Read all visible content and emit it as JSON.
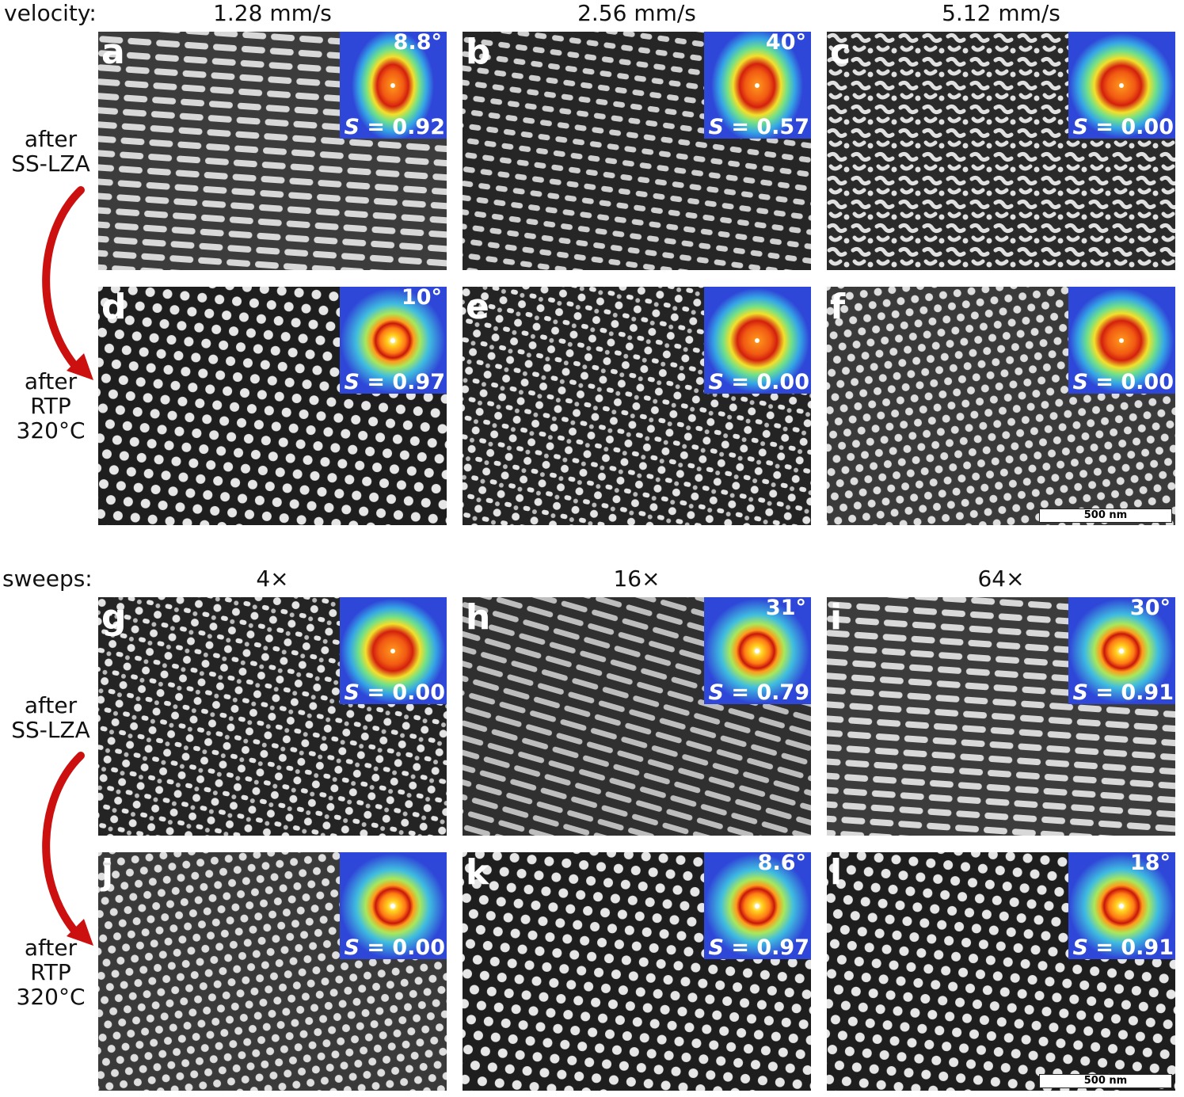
{
  "header_velocity": {
    "label": "velocity:",
    "columns": [
      "1.28 mm/s",
      "2.56 mm/s",
      "5.12 mm/s"
    ]
  },
  "header_sweeps": {
    "label": "sweeps:",
    "columns": [
      "4×",
      "16×",
      "64×"
    ]
  },
  "row_labels": {
    "after_lza": [
      "after",
      "SS-LZA"
    ],
    "after_rtp": [
      "after",
      "RTP",
      "320°C"
    ]
  },
  "panels": {
    "a": {
      "letter": "a",
      "angle": "8.8°",
      "s": "0.92",
      "pattern": "lamellae"
    },
    "b": {
      "letter": "b",
      "angle": "40°",
      "s": "0.57",
      "pattern": "short-lamellae"
    },
    "c": {
      "letter": "c",
      "angle": "",
      "s": "0.00",
      "pattern": "disordered"
    },
    "d": {
      "letter": "d",
      "angle": "10°",
      "s": "0.97",
      "pattern": "hexagonal-dots"
    },
    "e": {
      "letter": "e",
      "angle": "",
      "s": "0.00",
      "pattern": "mixed-dots"
    },
    "f": {
      "letter": "f",
      "angle": "",
      "s": "0.00",
      "pattern": "dense-dots"
    },
    "g": {
      "letter": "g",
      "angle": "",
      "s": "0.00",
      "pattern": "mixed-dots"
    },
    "h": {
      "letter": "h",
      "angle": "31°",
      "s": "0.79",
      "pattern": "tilted-lamellae"
    },
    "i": {
      "letter": "i",
      "angle": "30°",
      "s": "0.91",
      "pattern": "lamellae"
    },
    "j": {
      "letter": "j",
      "angle": "",
      "s": "0.00",
      "pattern": "dense-dots"
    },
    "k": {
      "letter": "k",
      "angle": "8.6°",
      "s": "0.97",
      "pattern": "hexagonal-dots"
    },
    "l": {
      "letter": "l",
      "angle": "18°",
      "s": "0.91",
      "pattern": "hexagonal-dots"
    }
  },
  "s_symbol": "S",
  "s_equals": " = ",
  "scale_bar": "500 nm",
  "colors": {
    "arrow": "#cc1010",
    "fft_background": "#2f47d8",
    "fft_ring": "#e23a10",
    "fft_center": "#ff9a1c"
  }
}
